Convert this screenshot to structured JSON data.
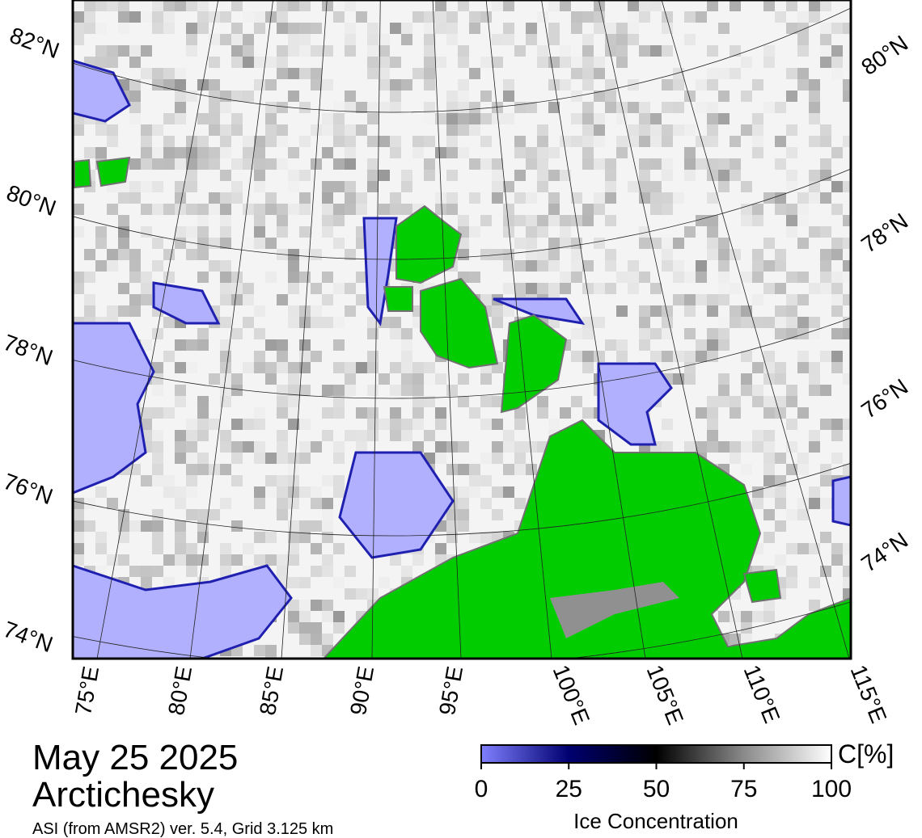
{
  "map": {
    "lat_labels_left": [
      "82°N",
      "80°N",
      "78°N",
      "76°N",
      "74°N"
    ],
    "lat_labels_right": [
      "80°N",
      "78°N",
      "76°N",
      "74°N"
    ],
    "lon_labels": [
      "75°E",
      "80°E",
      "85°E",
      "90°E",
      "95°E",
      "100°E",
      "105°E",
      "110°E",
      "115°E"
    ]
  },
  "date": "May 25 2025",
  "region": "Arctichesky",
  "source": "ASI (from AMSR2) ver. 5.4,  Grid 3.125 km",
  "colorbar": {
    "unit": "C[%]",
    "label": "Ice Concentration",
    "range": [
      0,
      100
    ],
    "ticks": [
      0,
      25,
      50,
      75,
      100
    ]
  }
}
